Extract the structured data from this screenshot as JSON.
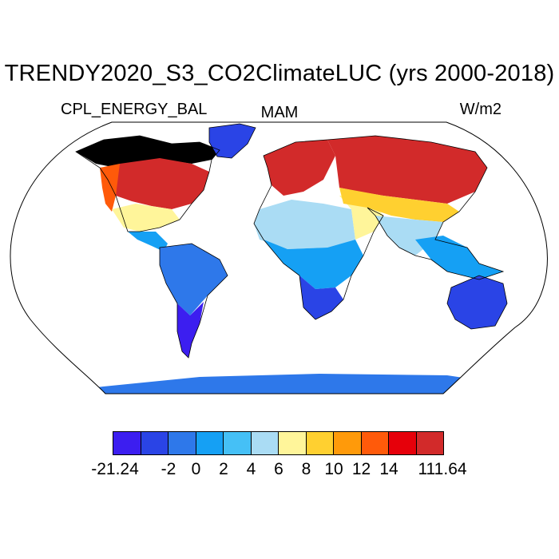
{
  "map": {
    "title": "TRENDY2020_S3_CO2ClimateLUC (yrs 2000-2018)",
    "variable": "CPL_ENERGY_BAL",
    "season": "MAM",
    "units": "W/m2",
    "projection": "Robinson",
    "regions": [
      {
        "name": "north-america-north",
        "category": 12
      },
      {
        "name": "north-america-east",
        "category": 11
      },
      {
        "name": "north-america-west",
        "category": 9
      },
      {
        "name": "north-america-south",
        "category": 6
      },
      {
        "name": "greenland",
        "category": 1
      },
      {
        "name": "central-america",
        "category": 3
      },
      {
        "name": "south-america-north",
        "category": 2
      },
      {
        "name": "south-america-south",
        "category": 0
      },
      {
        "name": "europe",
        "category": 11
      },
      {
        "name": "north-africa",
        "category": 5
      },
      {
        "name": "sub-saharan-africa",
        "category": 3
      },
      {
        "name": "southern-africa",
        "category": 1
      },
      {
        "name": "middle-east",
        "category": 6
      },
      {
        "name": "siberia",
        "category": 11
      },
      {
        "name": "central-asia",
        "category": 7
      },
      {
        "name": "south-asia",
        "category": 5
      },
      {
        "name": "southeast-asia",
        "category": 3
      },
      {
        "name": "australia",
        "category": 1
      },
      {
        "name": "antarctica",
        "category": 2
      }
    ]
  },
  "colorbar": {
    "colors": [
      "#3c1ef0",
      "#2a44e6",
      "#2e78ea",
      "#15a0f4",
      "#45c0f6",
      "#aadcf4",
      "#fff59a",
      "#ffd030",
      "#ff9a0a",
      "#ff5a0a",
      "#e6000a",
      "#d22a2a"
    ],
    "labels": [
      "-21.24",
      "-2",
      "0",
      "2",
      "4",
      "6",
      "8",
      "10",
      "12",
      "14",
      "111.64"
    ],
    "label_boundaries": [
      0,
      2,
      3,
      4,
      5,
      6,
      7,
      8,
      9,
      10,
      12
    ]
  }
}
